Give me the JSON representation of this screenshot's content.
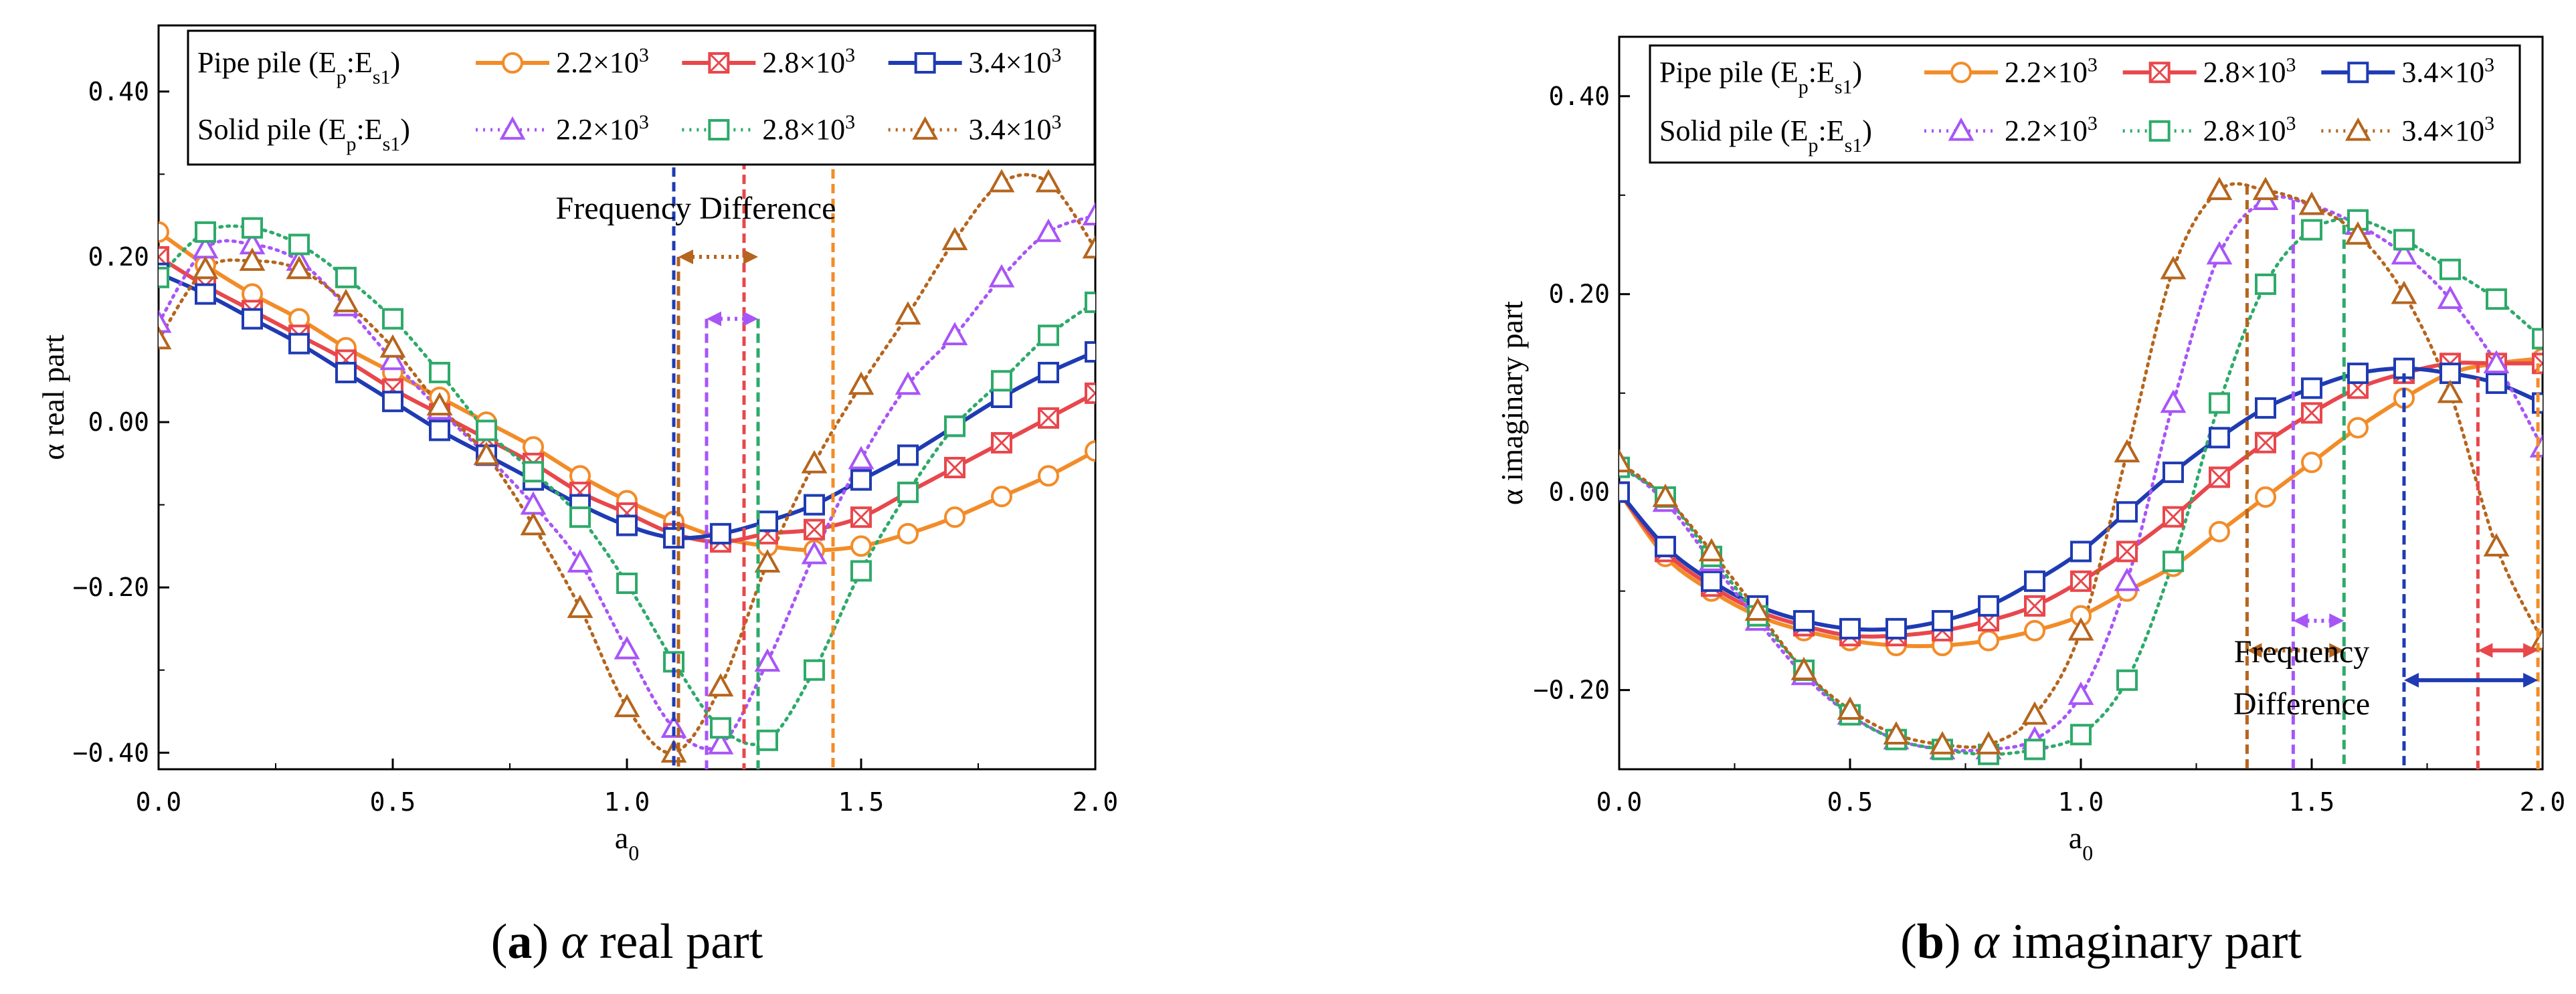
{
  "charts": [
    {
      "panel": "a",
      "caption": {
        "letter": "a",
        "symbol": "α",
        "text": "real part"
      },
      "annotation": "Frequency Difference",
      "chart_data": {
        "type": "line",
        "xlabel": "a",
        "xlabel_sub": "0",
        "ylabel": "α real part",
        "xlim": [
          0,
          2
        ],
        "ylim": [
          -0.42,
          0.48
        ],
        "xticks": [
          0,
          0.5,
          1,
          1.5,
          2
        ],
        "xtick_labels": [
          "0.0",
          "0.5",
          "1.0",
          "1.5",
          "2.0"
        ],
        "yticks": [
          -0.4,
          -0.2,
          0,
          0.2,
          0.4
        ],
        "ytick_labels": [
          "−0.40",
          "−0.20",
          "0.00",
          "0.20",
          "0.40"
        ],
        "legend_position": "top",
        "legend_rows": [
          {
            "label": "Pipe pile",
            "sub_paren": "E",
            "sub_p": "p",
            "colon": ":E",
            "sub_s": "s1"
          },
          {
            "label": "Solid pile",
            "sub_paren": "E",
            "sub_p": "p",
            "colon": ":E",
            "sub_s": "s1"
          }
        ],
        "series": [
          {
            "group": "Pipe pile",
            "mantissa": "2.2×10",
            "exp": "3",
            "color": "#F28C28",
            "dash": false,
            "marker": "circle",
            "x": [
              0,
              0.1,
              0.2,
              0.3,
              0.4,
              0.5,
              0.6,
              0.7,
              0.8,
              0.9,
              1.0,
              1.1,
              1.2,
              1.3,
              1.4,
              1.5,
              1.6,
              1.7,
              1.8,
              1.9,
              2.0
            ],
            "y": [
              0.23,
              0.19,
              0.155,
              0.125,
              0.09,
              0.06,
              0.03,
              0.0,
              -0.03,
              -0.065,
              -0.095,
              -0.12,
              -0.14,
              -0.15,
              -0.155,
              -0.15,
              -0.135,
              -0.115,
              -0.09,
              -0.065,
              -0.035
            ]
          },
          {
            "group": "Pipe pile",
            "mantissa": "2.8×10",
            "exp": "3",
            "color": "#E8474C",
            "dash": false,
            "marker": "xsquare",
            "x": [
              0,
              0.1,
              0.2,
              0.3,
              0.4,
              0.5,
              0.6,
              0.7,
              0.8,
              0.9,
              1.0,
              1.1,
              1.2,
              1.3,
              1.4,
              1.5,
              1.6,
              1.7,
              1.8,
              1.9,
              2.0
            ],
            "y": [
              0.2,
              0.165,
              0.135,
              0.105,
              0.075,
              0.04,
              0.01,
              -0.02,
              -0.05,
              -0.085,
              -0.11,
              -0.135,
              -0.145,
              -0.135,
              -0.13,
              -0.115,
              -0.085,
              -0.055,
              -0.025,
              0.005,
              0.035
            ]
          },
          {
            "group": "Pipe pile",
            "mantissa": "3.4×10",
            "exp": "3",
            "color": "#1F3BB3",
            "dash": false,
            "marker": "square",
            "x": [
              0,
              0.1,
              0.2,
              0.3,
              0.4,
              0.5,
              0.6,
              0.7,
              0.8,
              0.9,
              1.0,
              1.1,
              1.2,
              1.3,
              1.4,
              1.5,
              1.6,
              1.7,
              1.8,
              1.9,
              2.0
            ],
            "y": [
              0.18,
              0.155,
              0.125,
              0.095,
              0.06,
              0.025,
              -0.01,
              -0.04,
              -0.07,
              -0.1,
              -0.125,
              -0.14,
              -0.135,
              -0.12,
              -0.1,
              -0.07,
              -0.04,
              -0.005,
              0.03,
              0.06,
              0.085
            ]
          },
          {
            "group": "Solid pile",
            "mantissa": "2.2×10",
            "exp": "3",
            "color": "#A855F7",
            "dash": true,
            "marker": "triangle",
            "x": [
              0,
              0.1,
              0.2,
              0.3,
              0.4,
              0.5,
              0.6,
              0.7,
              0.8,
              0.9,
              1.0,
              1.1,
              1.2,
              1.3,
              1.4,
              1.5,
              1.6,
              1.7,
              1.8,
              1.9,
              2.0
            ],
            "y": [
              0.12,
              0.21,
              0.215,
              0.195,
              0.14,
              0.075,
              0.015,
              -0.04,
              -0.1,
              -0.17,
              -0.275,
              -0.37,
              -0.39,
              -0.29,
              -0.16,
              -0.045,
              0.045,
              0.105,
              0.175,
              0.23,
              0.25
            ]
          },
          {
            "group": "Solid pile",
            "mantissa": "2.8×10",
            "exp": "3",
            "color": "#2EAA6A",
            "dash": true,
            "marker": "square",
            "x": [
              0,
              0.1,
              0.2,
              0.3,
              0.4,
              0.5,
              0.6,
              0.7,
              0.8,
              0.9,
              1.0,
              1.1,
              1.2,
              1.3,
              1.4,
              1.5,
              1.6,
              1.7,
              1.8,
              1.9,
              2.0
            ],
            "y": [
              0.175,
              0.23,
              0.235,
              0.215,
              0.175,
              0.125,
              0.06,
              -0.01,
              -0.06,
              -0.115,
              -0.195,
              -0.29,
              -0.37,
              -0.385,
              -0.3,
              -0.18,
              -0.085,
              -0.005,
              0.05,
              0.105,
              0.145
            ]
          },
          {
            "group": "Solid pile",
            "mantissa": "3.4×10",
            "exp": "3",
            "color": "#B5651D",
            "dash": true,
            "marker": "triangle",
            "x": [
              0,
              0.1,
              0.2,
              0.3,
              0.4,
              0.5,
              0.6,
              0.7,
              0.8,
              0.9,
              1.0,
              1.1,
              1.2,
              1.3,
              1.4,
              1.5,
              1.6,
              1.7,
              1.8,
              1.9,
              2.0
            ],
            "y": [
              0.1,
              0.185,
              0.195,
              0.185,
              0.145,
              0.09,
              0.02,
              -0.04,
              -0.125,
              -0.225,
              -0.345,
              -0.4,
              -0.32,
              -0.17,
              -0.05,
              0.045,
              0.13,
              0.22,
              0.29,
              0.29,
              0.21
            ]
          }
        ],
        "markers_x": [
          {
            "x": 1.1,
            "y_top": 0.415,
            "color": "#1F3BB3"
          },
          {
            "x": 1.11,
            "y_top": 0.2,
            "color": "#B5651D"
          },
          {
            "x": 1.17,
            "y_top": 0.125,
            "color": "#A855F7"
          },
          {
            "x": 1.25,
            "y_top": 0.335,
            "color": "#E8474C"
          },
          {
            "x": 1.28,
            "y_top": 0.125,
            "color": "#2EAA6A"
          },
          {
            "x": 1.44,
            "y_top": 0.395,
            "color": "#F28C28"
          }
        ],
        "diff_arrows": [
          {
            "x1": 1.1,
            "x2": 1.44,
            "y": 0.415,
            "color": "#1F3BB3"
          },
          {
            "x1": 1.25,
            "x2": 1.44,
            "y": 0.335,
            "color": "#E8474C"
          },
          {
            "x1": 1.11,
            "x2": 1.28,
            "y": 0.2,
            "color": "#B5651D"
          },
          {
            "x1": 1.17,
            "x2": 1.28,
            "y": 0.125,
            "color": "#A855F7"
          }
        ]
      }
    },
    {
      "panel": "b",
      "caption": {
        "letter": "b",
        "symbol": "α",
        "text": "imaginary part"
      },
      "annotation_lines": [
        "Frequency",
        "Difference"
      ],
      "chart_data": {
        "type": "line",
        "xlabel": "a",
        "xlabel_sub": "0",
        "ylabel": "α imaginary part",
        "xlim": [
          0,
          2
        ],
        "ylim": [
          -0.28,
          0.46
        ],
        "xticks": [
          0,
          0.5,
          1,
          1.5,
          2
        ],
        "xtick_labels": [
          "0.0",
          "0.5",
          "1.0",
          "1.5",
          "2.0"
        ],
        "yticks": [
          -0.2,
          0,
          0.2,
          0.4
        ],
        "ytick_labels": [
          "−0.20",
          "0.00",
          "0.20",
          "0.40"
        ],
        "legend_position": "top",
        "legend_rows": [
          {
            "label": "Pipe pile",
            "sub_paren": "E",
            "sub_p": "p",
            "colon": ":E",
            "sub_s": "s1"
          },
          {
            "label": "Solid pile",
            "sub_paren": "E",
            "sub_p": "p",
            "colon": ":E",
            "sub_s": "s1"
          }
        ],
        "series": [
          {
            "group": "Pipe pile",
            "mantissa": "2.2×10",
            "exp": "3",
            "color": "#F28C28",
            "dash": false,
            "marker": "circle",
            "x": [
              0,
              0.1,
              0.2,
              0.3,
              0.4,
              0.5,
              0.6,
              0.7,
              0.8,
              0.9,
              1.0,
              1.1,
              1.2,
              1.3,
              1.4,
              1.5,
              1.6,
              1.7,
              1.8,
              1.9,
              2.0
            ],
            "y": [
              0.0,
              -0.065,
              -0.1,
              -0.125,
              -0.14,
              -0.15,
              -0.155,
              -0.155,
              -0.15,
              -0.14,
              -0.125,
              -0.1,
              -0.075,
              -0.04,
              -0.005,
              0.03,
              0.065,
              0.095,
              0.12,
              0.13,
              0.135
            ]
          },
          {
            "group": "Pipe pile",
            "mantissa": "2.8×10",
            "exp": "3",
            "color": "#E8474C",
            "dash": false,
            "marker": "xsquare",
            "x": [
              0,
              0.1,
              0.2,
              0.3,
              0.4,
              0.5,
              0.6,
              0.7,
              0.8,
              0.9,
              1.0,
              1.1,
              1.2,
              1.3,
              1.4,
              1.5,
              1.6,
              1.7,
              1.8,
              1.9,
              2.0
            ],
            "y": [
              0.0,
              -0.06,
              -0.095,
              -0.12,
              -0.135,
              -0.145,
              -0.145,
              -0.14,
              -0.13,
              -0.115,
              -0.09,
              -0.06,
              -0.025,
              0.015,
              0.05,
              0.08,
              0.105,
              0.12,
              0.13,
              0.13,
              0.13
            ]
          },
          {
            "group": "Pipe pile",
            "mantissa": "3.4×10",
            "exp": "3",
            "color": "#1F3BB3",
            "dash": false,
            "marker": "square",
            "x": [
              0,
              0.1,
              0.2,
              0.3,
              0.4,
              0.5,
              0.6,
              0.7,
              0.8,
              0.9,
              1.0,
              1.1,
              1.2,
              1.3,
              1.4,
              1.5,
              1.6,
              1.7,
              1.8,
              1.9,
              2.0
            ],
            "y": [
              0.0,
              -0.055,
              -0.09,
              -0.115,
              -0.13,
              -0.138,
              -0.138,
              -0.13,
              -0.115,
              -0.09,
              -0.06,
              -0.02,
              0.02,
              0.055,
              0.085,
              0.105,
              0.12,
              0.125,
              0.12,
              0.11,
              0.09
            ]
          },
          {
            "group": "Solid pile",
            "mantissa": "2.2×10",
            "exp": "3",
            "color": "#A855F7",
            "dash": true,
            "marker": "triangle",
            "x": [
              0,
              0.1,
              0.2,
              0.3,
              0.4,
              0.5,
              0.6,
              0.7,
              0.8,
              0.9,
              1.0,
              1.1,
              1.2,
              1.3,
              1.4,
              1.5,
              1.6,
              1.7,
              1.8,
              1.9,
              2.0
            ],
            "y": [
              0.03,
              -0.01,
              -0.07,
              -0.13,
              -0.185,
              -0.225,
              -0.25,
              -0.26,
              -0.26,
              -0.25,
              -0.205,
              -0.09,
              0.09,
              0.24,
              0.295,
              0.29,
              0.27,
              0.24,
              0.195,
              0.13,
              0.045
            ]
          },
          {
            "group": "Solid pile",
            "mantissa": "2.8×10",
            "exp": "3",
            "color": "#2EAA6A",
            "dash": true,
            "marker": "square",
            "x": [
              0,
              0.1,
              0.2,
              0.3,
              0.4,
              0.5,
              0.6,
              0.7,
              0.8,
              0.9,
              1.0,
              1.1,
              1.2,
              1.3,
              1.4,
              1.5,
              1.6,
              1.7,
              1.8,
              1.9,
              2.0
            ],
            "y": [
              0.025,
              -0.005,
              -0.065,
              -0.125,
              -0.18,
              -0.225,
              -0.25,
              -0.26,
              -0.265,
              -0.26,
              -0.245,
              -0.19,
              -0.07,
              0.09,
              0.21,
              0.265,
              0.275,
              0.255,
              0.225,
              0.195,
              0.155
            ]
          },
          {
            "group": "Solid pile",
            "mantissa": "3.4×10",
            "exp": "3",
            "color": "#B5651D",
            "dash": true,
            "marker": "triangle",
            "x": [
              0,
              0.1,
              0.2,
              0.3,
              0.4,
              0.5,
              0.6,
              0.7,
              0.8,
              0.9,
              1.0,
              1.1,
              1.2,
              1.3,
              1.4,
              1.5,
              1.6,
              1.7,
              1.8,
              1.9,
              2.0
            ],
            "y": [
              0.03,
              -0.005,
              -0.06,
              -0.12,
              -0.18,
              -0.22,
              -0.245,
              -0.255,
              -0.255,
              -0.225,
              -0.14,
              0.04,
              0.225,
              0.305,
              0.305,
              0.29,
              0.26,
              0.2,
              0.1,
              -0.055,
              -0.15
            ]
          }
        ],
        "markers_x": [
          {
            "x": 1.36,
            "y_top": 0.31,
            "color": "#B5651D"
          },
          {
            "x": 1.46,
            "y_top": 0.295,
            "color": "#A855F7"
          },
          {
            "x": 1.57,
            "y_top": 0.27,
            "color": "#2EAA6A"
          },
          {
            "x": 1.7,
            "y_top": 0.12,
            "color": "#1F3BB3"
          },
          {
            "x": 1.86,
            "y_top": 0.13,
            "color": "#E8474C"
          },
          {
            "x": 1.99,
            "y_top": 0.13,
            "color": "#F28C28"
          }
        ],
        "diff_arrows": [
          {
            "x1": 1.36,
            "x2": 1.57,
            "y": -0.16,
            "color": "#B5651D"
          },
          {
            "x1": 1.46,
            "x2": 1.57,
            "y": -0.13,
            "color": "#A855F7"
          },
          {
            "x1": 1.86,
            "x2": 1.99,
            "y": -0.16,
            "color": "#E8474C"
          },
          {
            "x1": 1.7,
            "x2": 1.99,
            "y": -0.19,
            "color": "#1F3BB3"
          }
        ]
      }
    }
  ]
}
